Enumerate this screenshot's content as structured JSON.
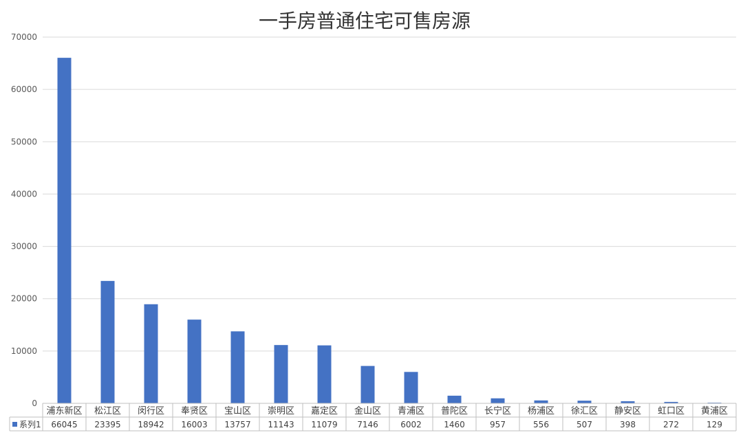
{
  "chart_data": {
    "type": "bar",
    "title": "一手房普通住宅可售房源",
    "categories": [
      "浦东新区",
      "松江区",
      "闵行区",
      "奉贤区",
      "宝山区",
      "崇明区",
      "嘉定区",
      "金山区",
      "青浦区",
      "普陀区",
      "长宁区",
      "杨浦区",
      "徐汇区",
      "静安区",
      "虹口区",
      "黄浦区"
    ],
    "series": [
      {
        "name": "系列1",
        "values": [
          66045,
          23395,
          18942,
          16003,
          13757,
          11143,
          11079,
          7146,
          6002,
          1460,
          957,
          556,
          507,
          398,
          272,
          129
        ]
      }
    ],
    "ylim": [
      0,
      70000
    ],
    "yticks": [
      0,
      10000,
      20000,
      30000,
      40000,
      50000,
      60000,
      70000
    ],
    "grid": true,
    "legend": "data-table-left",
    "bar_color": "#4472C4"
  }
}
